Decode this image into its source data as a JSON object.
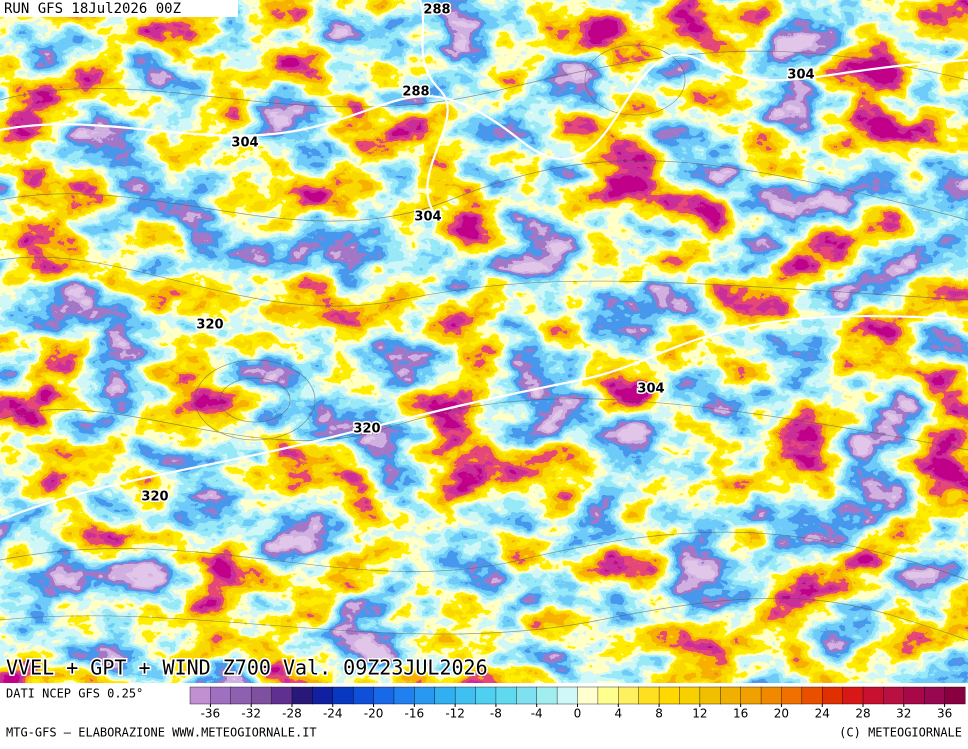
{
  "header": {
    "run": "RUN GFS 18Jul2026 00Z"
  },
  "map": {
    "contour_labels": [
      288,
      288,
      304,
      304,
      304,
      304,
      320,
      320,
      320
    ]
  },
  "footer": {
    "title": "VVEL + GPT + WIND Z700 Val. 09Z23JUL2026",
    "source": "DATI NCEP GFS 0.25°",
    "credit": "MTG-GFS – ELABORAZIONE WWW.METEOGIORNALE.IT",
    "copyright": "(C) METEOGIORNALE"
  },
  "colorbar": {
    "lim": [
      -38,
      38
    ],
    "ticks": [
      -36,
      -32,
      -28,
      -24,
      -20,
      -16,
      -12,
      -8,
      -4,
      0,
      4,
      8,
      12,
      16,
      20,
      24,
      28,
      32,
      36
    ],
    "colors": [
      "#c090d0",
      "#a070c0",
      "#9060b0",
      "#8050a0",
      "#603090",
      "#281878",
      "#1020a0",
      "#0838c0",
      "#1050d8",
      "#1868e8",
      "#2080f0",
      "#2898f0",
      "#30b0f0",
      "#40c0f0",
      "#50d0f0",
      "#60d8f0",
      "#80e0f0",
      "#a0eef0",
      "#d0f8f8",
      "#ffffd0",
      "#ffff90",
      "#fff060",
      "#ffe020",
      "#ffd800",
      "#f8d000",
      "#f0c000",
      "#f0b000",
      "#f0a000",
      "#f08800",
      "#f07000",
      "#e85000",
      "#e03000",
      "#d81818",
      "#c81030",
      "#b81040",
      "#a80848",
      "#980850",
      "#880040"
    ]
  }
}
